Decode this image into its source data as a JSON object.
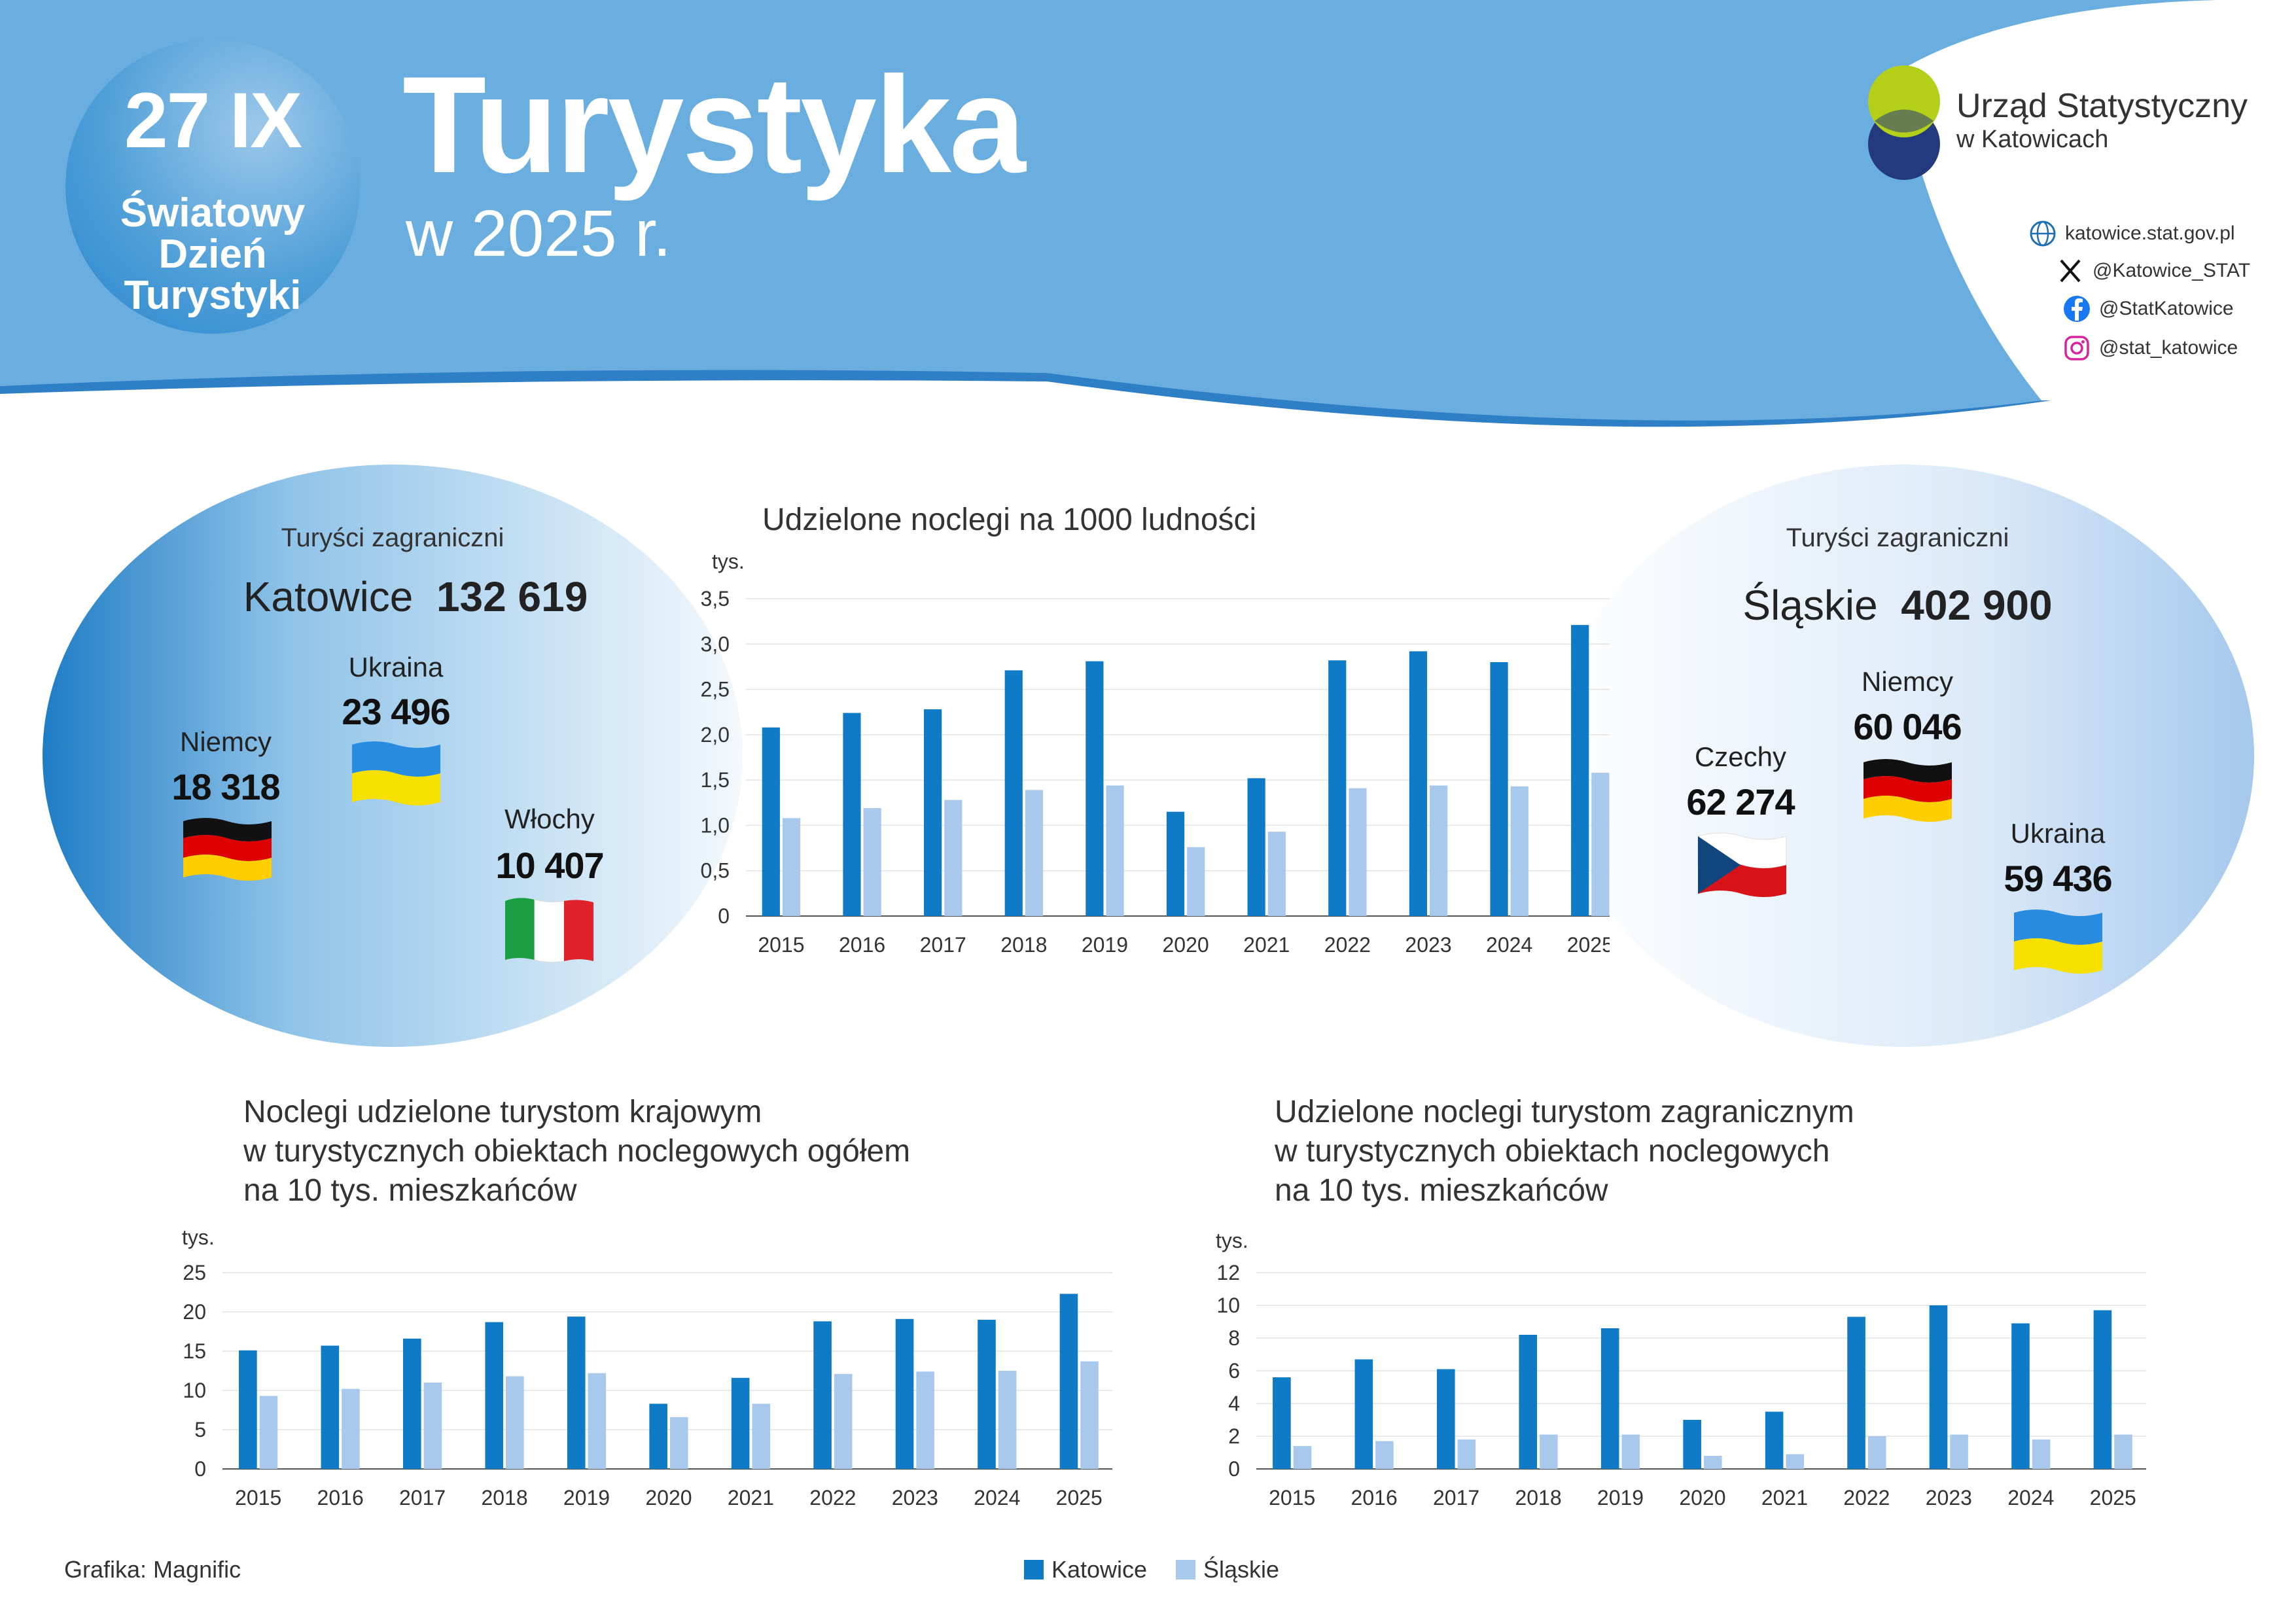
{
  "header": {
    "badge_date": "27 IX",
    "badge_line1": "Światowy",
    "badge_line2": "Dzień",
    "badge_line3": "Turystyki",
    "title": "Turystyka",
    "subtitle": "w 2025 r.",
    "logo_line1": "Urząd Statystyczny",
    "logo_line2": "w Katowicach",
    "social": {
      "web": "katowice.stat.gov.pl",
      "x": "@Katowice_STAT",
      "facebook": "@StatKatowice",
      "instagram": "@stat_katowice"
    }
  },
  "left_blob": {
    "label": "Turyści zagraniczni",
    "region": "Katowice",
    "total": "132 619",
    "countries": [
      {
        "name": "Niemcy",
        "value": "18 318",
        "flag": "germany-flag"
      },
      {
        "name": "Ukraina",
        "value": "23 496",
        "flag": "ukraine-flag"
      },
      {
        "name": "Włochy",
        "value": "10 407",
        "flag": "italy-flag"
      }
    ]
  },
  "right_blob": {
    "label": "Turyści zagraniczni",
    "region": "Śląskie",
    "total": "402 900",
    "countries": [
      {
        "name": "Czechy",
        "value": "62 274",
        "flag": "czech-flag"
      },
      {
        "name": "Niemcy",
        "value": "60 046",
        "flag": "germany-flag"
      },
      {
        "name": "Ukraina",
        "value": "59 436",
        "flag": "ukraine-flag"
      }
    ]
  },
  "colors": {
    "katowice": "#0f7ac6",
    "slaskie": "#a9c9ec",
    "header": "#6aaee0"
  },
  "chart_data": [
    {
      "type": "bar",
      "title": "Udzielone noclegi na 1000 ludności",
      "ylabel": "tys.",
      "ylim": [
        0,
        3.5
      ],
      "yticks": [
        "0",
        "0,5",
        "1,0",
        "1,5",
        "2,0",
        "2,5",
        "3,0",
        "3,5"
      ],
      "categories": [
        "2015",
        "2016",
        "2017",
        "2018",
        "2019",
        "2020",
        "2021",
        "2022",
        "2023",
        "2024",
        "2025"
      ],
      "series": [
        {
          "name": "Katowice",
          "values": [
            2.08,
            2.24,
            2.28,
            2.71,
            2.81,
            1.15,
            1.52,
            2.82,
            2.92,
            2.8,
            3.21
          ]
        },
        {
          "name": "Śląskie",
          "values": [
            1.08,
            1.19,
            1.28,
            1.39,
            1.44,
            0.76,
            0.93,
            1.41,
            1.44,
            1.43,
            1.58
          ]
        }
      ],
      "grid": true
    },
    {
      "type": "bar",
      "title_lines": [
        "Noclegi udzielone turystom krajowym",
        "w turystycznych obiektach noclegowych ogółem",
        "na 10 tys. mieszkańców"
      ],
      "ylabel": "tys.",
      "ylim": [
        0,
        25
      ],
      "yticks": [
        "0",
        "5",
        "10",
        "15",
        "20",
        "25"
      ],
      "categories": [
        "2015",
        "2016",
        "2017",
        "2018",
        "2019",
        "2020",
        "2021",
        "2022",
        "2023",
        "2024",
        "2025"
      ],
      "series": [
        {
          "name": "Katowice",
          "values": [
            15.1,
            15.7,
            16.6,
            18.7,
            19.4,
            8.3,
            11.6,
            18.8,
            19.1,
            19.0,
            22.3
          ]
        },
        {
          "name": "Śląskie",
          "values": [
            9.3,
            10.2,
            11.0,
            11.8,
            12.2,
            6.6,
            8.3,
            12.1,
            12.4,
            12.5,
            13.7
          ]
        }
      ],
      "grid": true
    },
    {
      "type": "bar",
      "title_lines": [
        "Udzielone noclegi turystom zagranicznym",
        "w turystycznych obiektach noclegowych",
        "na 10 tys. mieszkańców"
      ],
      "ylabel": "tys.",
      "ylim": [
        0,
        12
      ],
      "yticks": [
        "0",
        "2",
        "4",
        "6",
        "8",
        "10",
        "12"
      ],
      "categories": [
        "2015",
        "2016",
        "2017",
        "2018",
        "2019",
        "2020",
        "2021",
        "2022",
        "2023",
        "2024",
        "2025"
      ],
      "series": [
        {
          "name": "Katowice",
          "values": [
            5.6,
            6.7,
            6.1,
            8.2,
            8.6,
            3.0,
            3.5,
            9.3,
            10.0,
            8.9,
            9.7
          ]
        },
        {
          "name": "Śląskie",
          "values": [
            1.4,
            1.7,
            1.8,
            2.1,
            2.1,
            0.8,
            0.9,
            2.0,
            2.1,
            1.8,
            2.1
          ]
        }
      ],
      "grid": true
    }
  ],
  "legend": {
    "katowice": "Katowice",
    "slaskie": "Śląskie"
  },
  "credit": "Grafika: Magnific"
}
